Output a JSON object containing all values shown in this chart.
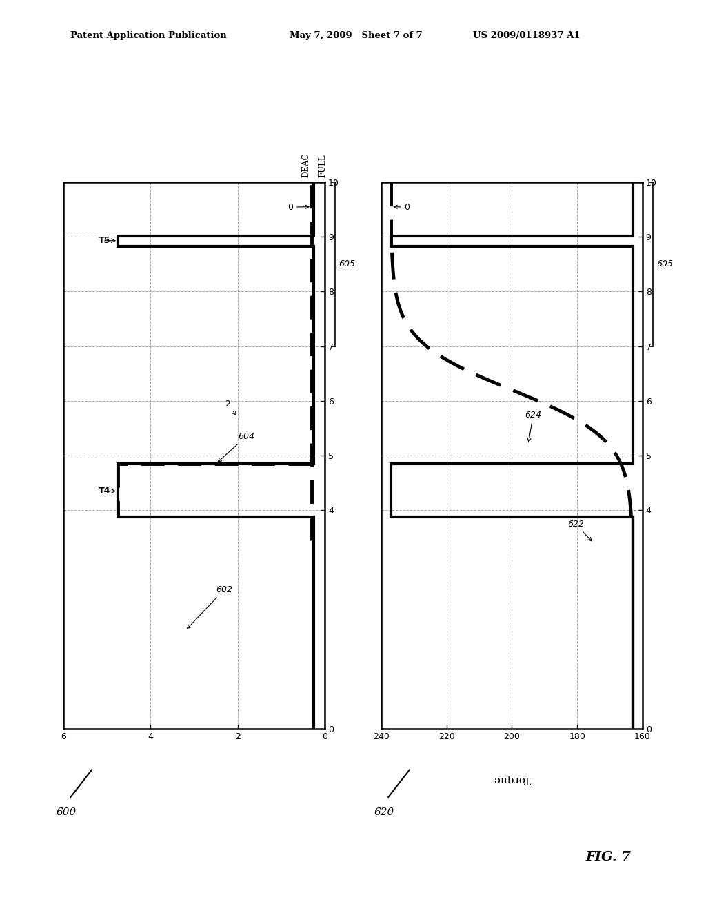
{
  "header_left": "Patent Application Publication",
  "header_mid": "May 7, 2009   Sheet 7 of 7",
  "header_right": "US 2009/0118937 A1",
  "fig_label": "FIG. 7",
  "bg_color": "#ffffff",
  "line_color": "#000000"
}
